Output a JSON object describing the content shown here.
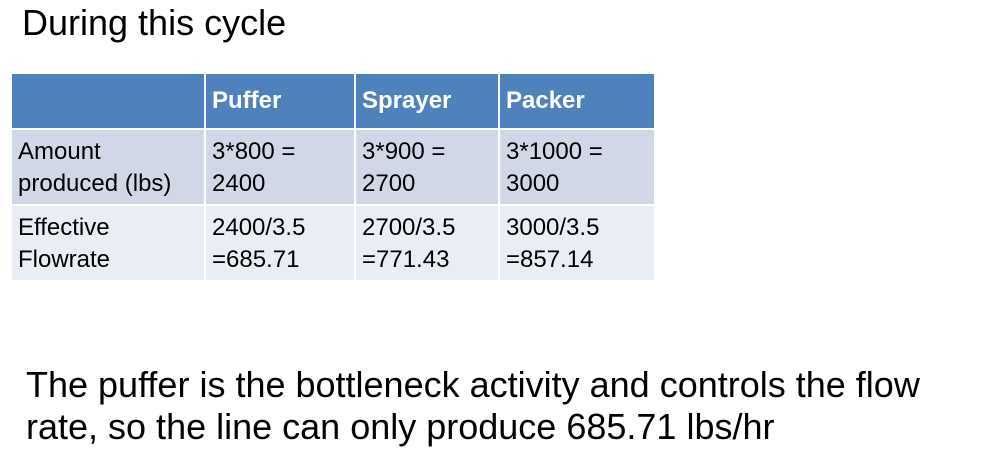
{
  "slide": {
    "title": "During this cycle"
  },
  "table": {
    "headers": [
      "",
      "Puffer",
      "Sprayer",
      "Packer"
    ],
    "rows": [
      {
        "label": [
          "Amount",
          "produced (lbs)"
        ],
        "cells": [
          [
            "3*800 =",
            "2400"
          ],
          [
            "3*900 =",
            "2700"
          ],
          [
            "3*1000 =",
            "3000"
          ]
        ]
      },
      {
        "label": [
          "Effective",
          "Flowrate"
        ],
        "cells": [
          [
            "2400/3.5",
            "=685.71"
          ],
          [
            "2700/3.5",
            "=771.43"
          ],
          [
            "3000/3.5",
            "=857.14"
          ]
        ]
      }
    ],
    "colors": {
      "header_bg": "#4f81bd",
      "row1_bg": "#d0d8e8",
      "row2_bg": "#e9edf4"
    }
  },
  "conclusion": {
    "line1": "The puffer is the bottleneck activity and controls the flow",
    "line2": "rate, so the line can only produce 685.71 lbs/hr"
  }
}
